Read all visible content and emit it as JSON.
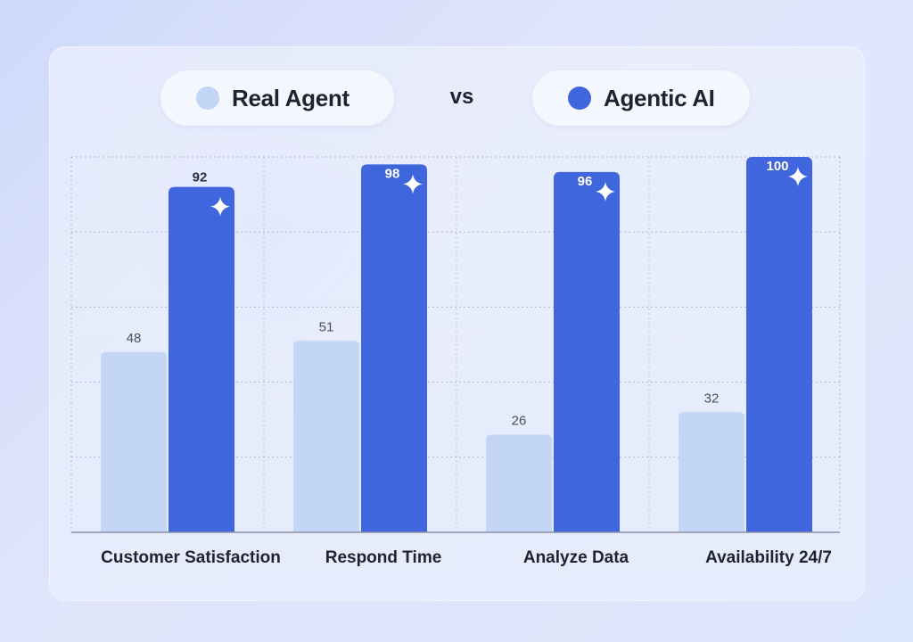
{
  "legend": {
    "real_label": "Real Agent",
    "vs_label": "vs",
    "ai_label": "Agentic AI"
  },
  "colors": {
    "real": "#c4d6f5",
    "ai": "#3f66dc",
    "grid": "#9aa3b8",
    "axis": "#8a92a6",
    "category_text": "#1f2330",
    "real_value_text": "#4a4f5c",
    "ai_value_text": "#2b3040",
    "ai_value_text_inside": "#ffffff"
  },
  "icons": {
    "bar_marker": "sparkle-icon"
  },
  "chart_data": {
    "type": "bar",
    "title": "",
    "xlabel": "",
    "ylabel": "",
    "categories": [
      "Customer Satisfaction",
      "Respond Time",
      "Analyze Data",
      "Availability 24/7"
    ],
    "series": [
      {
        "name": "Real Agent",
        "values": [
          48,
          51,
          26,
          32
        ]
      },
      {
        "name": "Agentic AI",
        "values": [
          92,
          98,
          96,
          100
        ]
      }
    ],
    "ylim": [
      0,
      100
    ],
    "grid": true,
    "legend_position": "top-center"
  }
}
